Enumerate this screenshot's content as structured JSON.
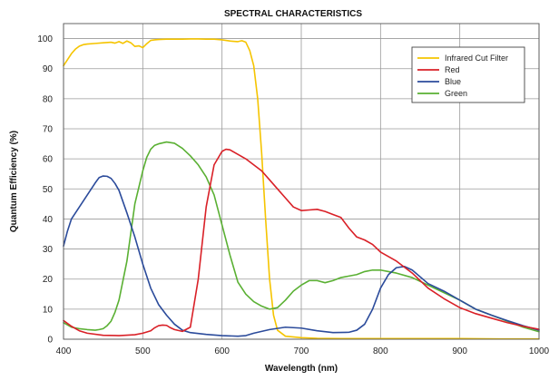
{
  "chart_data": {
    "type": "line",
    "title": "SPECTRAL CHARACTERISTICS",
    "xlabel": "Wavelength (nm)",
    "ylabel": "Quantum Efficiency (%)",
    "xlim": [
      400,
      1000
    ],
    "ylim": [
      0,
      105
    ],
    "xticks": [
      400,
      500,
      600,
      700,
      800,
      900,
      1000
    ],
    "yticks": [
      0,
      10,
      20,
      30,
      40,
      50,
      60,
      70,
      80,
      90,
      100
    ],
    "grid": true,
    "legend_position": "top-right",
    "series": [
      {
        "name": "Infrared Cut Filter",
        "color": "#f5c400",
        "x": [
          400,
          405,
          410,
          415,
          420,
          425,
          430,
          440,
          450,
          460,
          465,
          470,
          475,
          480,
          485,
          490,
          495,
          500,
          505,
          510,
          515,
          520,
          530,
          540,
          550,
          560,
          570,
          580,
          590,
          600,
          610,
          620,
          625,
          630,
          635,
          640,
          645,
          650,
          655,
          660,
          665,
          670,
          680,
          700,
          720,
          750,
          800,
          850,
          900,
          950,
          1000
        ],
        "y": [
          91,
          93,
          95,
          96.5,
          97.5,
          98,
          98.2,
          98.4,
          98.6,
          98.8,
          98.5,
          99,
          98.4,
          99.2,
          98.6,
          97.4,
          97.6,
          97,
          98.3,
          99.4,
          99.6,
          99.7,
          99.8,
          99.8,
          99.8,
          99.9,
          99.9,
          99.8,
          99.8,
          99.6,
          99.2,
          99,
          99.3,
          98.8,
          96,
          91,
          80,
          62,
          40,
          20,
          8,
          3,
          1,
          0.5,
          0.3,
          0.2,
          0.2,
          0.2,
          0.2,
          0.1,
          0.1
        ]
      },
      {
        "name": "Red",
        "color": "#d92027",
        "x": [
          400,
          410,
          420,
          430,
          450,
          470,
          490,
          500,
          510,
          515,
          520,
          525,
          530,
          535,
          540,
          550,
          560,
          570,
          580,
          590,
          600,
          605,
          610,
          620,
          630,
          640,
          650,
          660,
          670,
          680,
          690,
          700,
          710,
          720,
          730,
          740,
          750,
          760,
          770,
          780,
          790,
          800,
          820,
          840,
          860,
          880,
          900,
          920,
          940,
          960,
          980,
          1000
        ],
        "y": [
          6.2,
          4.3,
          2.8,
          2,
          1.3,
          1.2,
          1.5,
          2,
          2.8,
          3.8,
          4.5,
          4.7,
          4.6,
          3.8,
          3.2,
          2.6,
          4,
          20,
          44,
          58,
          62.5,
          63.2,
          63,
          61.5,
          60,
          58,
          56,
          53,
          50,
          47,
          44,
          42.8,
          43,
          43.2,
          42.5,
          41.5,
          40.5,
          37,
          34,
          33,
          31.5,
          29,
          26,
          22,
          17,
          13.5,
          10.5,
          8.5,
          7,
          5.5,
          4.3,
          3.3
        ]
      },
      {
        "name": "Blue",
        "color": "#2b4b9b",
        "x": [
          400,
          405,
          410,
          420,
          430,
          440,
          445,
          450,
          455,
          460,
          465,
          470,
          480,
          490,
          500,
          510,
          520,
          530,
          540,
          550,
          560,
          580,
          600,
          620,
          630,
          640,
          660,
          680,
          700,
          720,
          740,
          760,
          770,
          780,
          790,
          800,
          810,
          820,
          830,
          840,
          860,
          880,
          900,
          920,
          940,
          960,
          980,
          1000
        ],
        "y": [
          31,
          36,
          40,
          44,
          48,
          52,
          53.8,
          54.3,
          54.2,
          53.5,
          51.8,
          49.5,
          42,
          34,
          25,
          17,
          11.5,
          8,
          5,
          3,
          2.2,
          1.6,
          1.2,
          1,
          1.2,
          2,
          3.2,
          4,
          3.7,
          2.8,
          2.2,
          2.3,
          3,
          5,
          10,
          17,
          21.5,
          23.8,
          24.2,
          23,
          18.5,
          16,
          13,
          10,
          8,
          6.2,
          4.5,
          3
        ]
      },
      {
        "name": "Green",
        "color": "#5ab033",
        "x": [
          400,
          410,
          420,
          430,
          440,
          445,
          450,
          455,
          460,
          465,
          470,
          480,
          490,
          500,
          505,
          510,
          515,
          520,
          530,
          540,
          550,
          560,
          570,
          580,
          590,
          600,
          610,
          620,
          630,
          640,
          650,
          660,
          670,
          680,
          690,
          700,
          710,
          720,
          730,
          740,
          750,
          760,
          770,
          780,
          790,
          800,
          810,
          820,
          840,
          860,
          880,
          900,
          920,
          940,
          960,
          980,
          1000
        ],
        "y": [
          5.5,
          4,
          3.5,
          3.2,
          3,
          3.2,
          3.5,
          4.5,
          6,
          9,
          13,
          26,
          45,
          56,
          60.5,
          63.2,
          64.5,
          65,
          65.6,
          65.2,
          63.5,
          61,
          58,
          54,
          48,
          38,
          28,
          19,
          15,
          12.5,
          11,
          10,
          10.5,
          13,
          16,
          18,
          19.5,
          19.5,
          18.8,
          19.5,
          20.5,
          21,
          21.5,
          22.5,
          23,
          23,
          22.5,
          22,
          20.5,
          18,
          15.5,
          13,
          10,
          8,
          6,
          4,
          2.5
        ]
      }
    ]
  }
}
